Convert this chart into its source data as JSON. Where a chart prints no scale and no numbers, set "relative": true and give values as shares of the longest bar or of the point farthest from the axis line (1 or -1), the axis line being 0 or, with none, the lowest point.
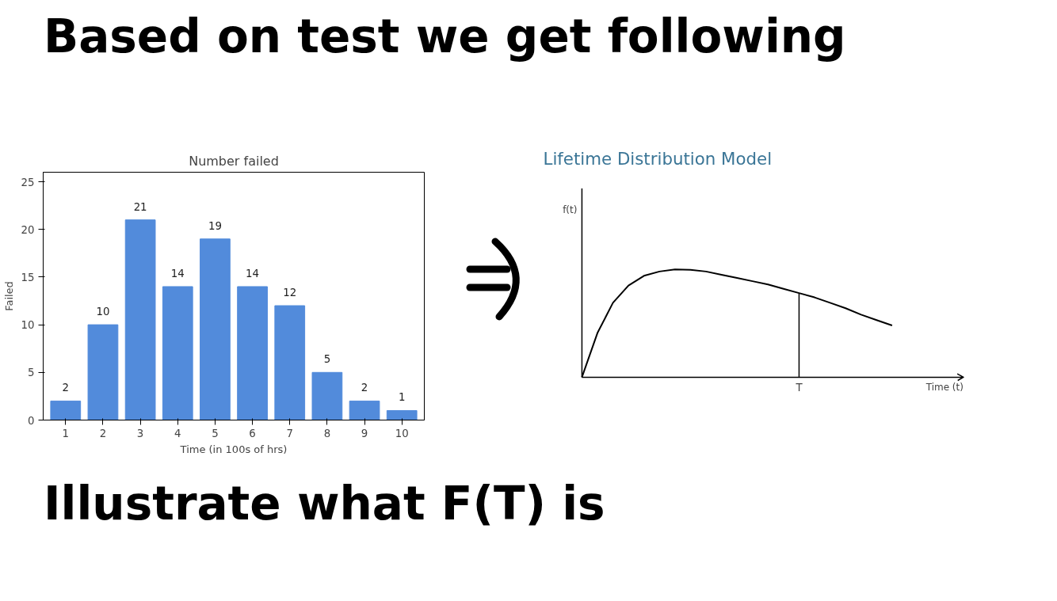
{
  "chart_data": [
    {
      "type": "bar",
      "title": "Number failed",
      "xlabel": "Time (in 100s of hrs)",
      "ylabel": "Failed",
      "categories": [
        "1",
        "2",
        "3",
        "4",
        "5",
        "6",
        "7",
        "8",
        "9",
        "10"
      ],
      "values": [
        2,
        10,
        21,
        14,
        19,
        14,
        12,
        5,
        2,
        1
      ],
      "color": "#528bdb",
      "ylim": [
        0,
        26
      ],
      "yticks": [
        0,
        5,
        10,
        15,
        20,
        25
      ],
      "data_labels": true,
      "grid": false,
      "annotations": [
        "Based on test we get following",
        "Illustrate what F(T) is"
      ]
    },
    {
      "type": "line",
      "title": "Lifetime Distribution Model",
      "xlabel": "Time (t)",
      "ylabel": "f(t)",
      "relative": true,
      "categories": [
        null,
        null,
        null,
        null,
        null,
        null,
        null,
        null,
        null,
        null,
        null,
        null,
        null,
        null,
        null,
        null,
        null,
        null,
        null,
        null,
        null
      ],
      "values": [
        0,
        0.41,
        0.69,
        0.85,
        0.94,
        0.98,
        1,
        0.995,
        0.98,
        0.95,
        0.92,
        0.89,
        0.86,
        0.82,
        0.78,
        0.74,
        0.69,
        0.64,
        0.58,
        0.53,
        0.48
      ],
      "color": "#000000",
      "annotations": [
        "T"
      ]
    }
  ]
}
